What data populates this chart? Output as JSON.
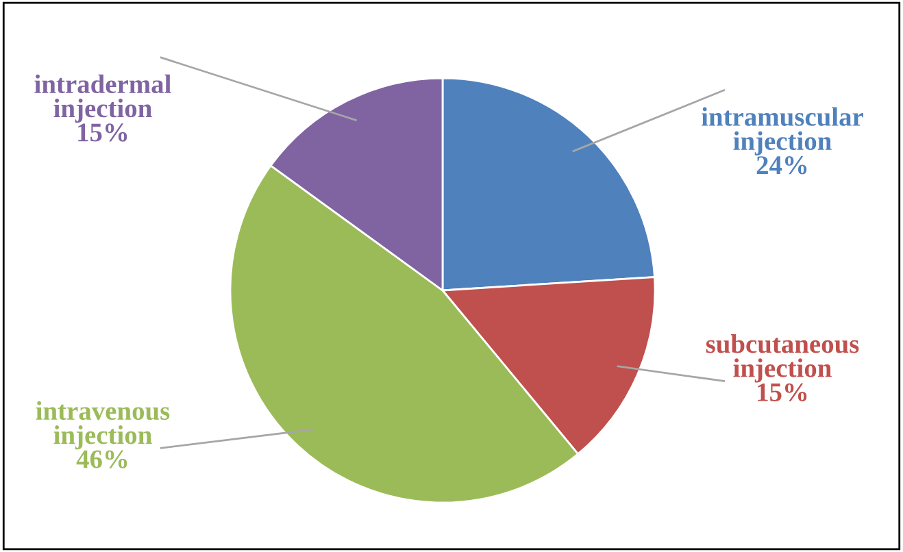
{
  "chart_data": {
    "type": "pie",
    "categories": [
      "intramuscular injection",
      "subcutaneous injection",
      "intravenous injection",
      "intradermal injection"
    ],
    "values": [
      24,
      15,
      46,
      15
    ],
    "value_labels": [
      "24%",
      "15%",
      "46%",
      "15%"
    ],
    "colors": [
      "#4f81bd",
      "#c0504d",
      "#9bbb59",
      "#8064a2"
    ],
    "legend": false
  }
}
